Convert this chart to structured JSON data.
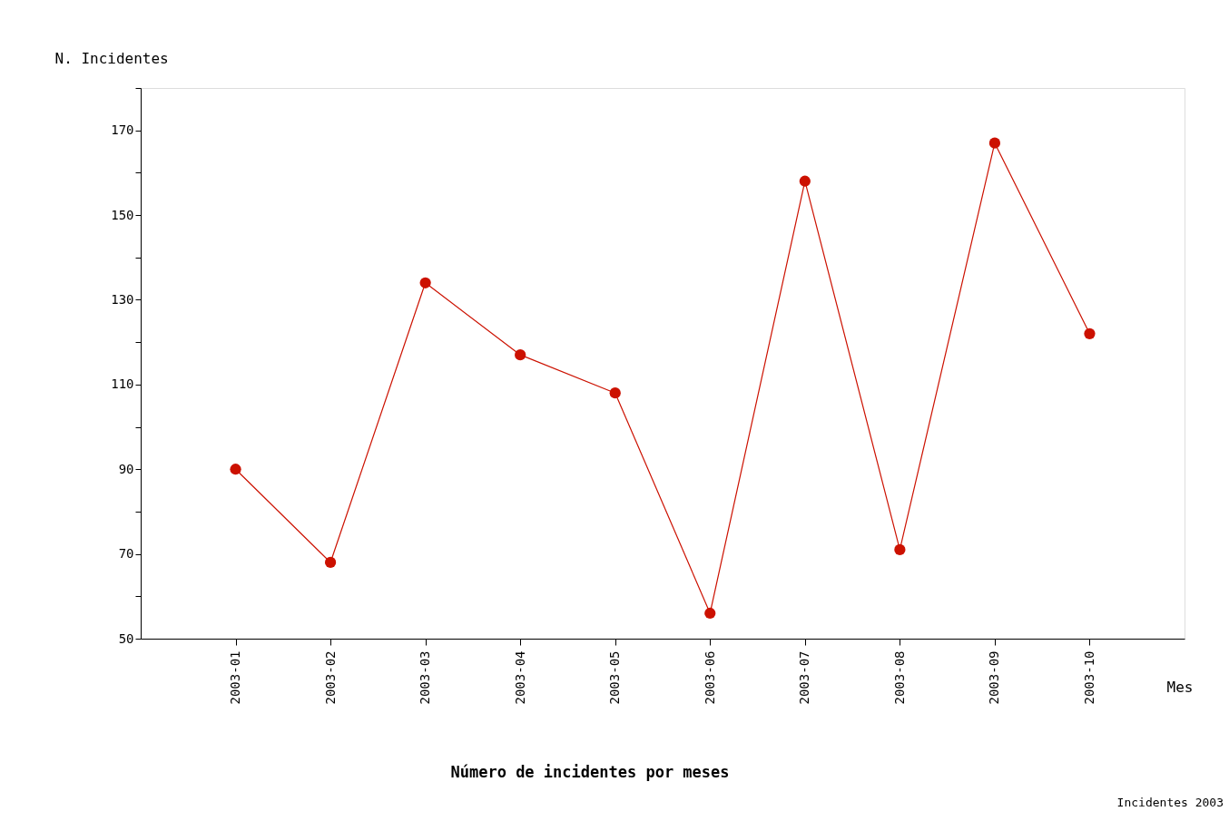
{
  "chart_data": {
    "type": "line",
    "title": "Número de incidentes por meses",
    "xlabel": "Mes",
    "ylabel": "N. Incidentes",
    "annotations": [
      "Incidentes 2003"
    ],
    "categories": [
      "2003-01",
      "2003-02",
      "2003-03",
      "2003-04",
      "2003-05",
      "2003-06",
      "2003-07",
      "2003-08",
      "2003-09",
      "2003-10"
    ],
    "series": [
      {
        "color": "#cc1100",
        "values": [
          90,
          68,
          134,
          117,
          108,
          56,
          158,
          71,
          167,
          122
        ]
      }
    ],
    "ylim": [
      50,
      180
    ],
    "yticks": [
      50,
      {
        "value": 60,
        "label": null
      },
      70,
      {
        "value": 80,
        "label": null
      },
      90,
      {
        "value": 100,
        "label": null
      },
      110,
      {
        "value": 120,
        "label": null
      },
      130,
      {
        "value": 140,
        "label": null
      },
      150,
      {
        "value": 160,
        "label": null
      },
      170,
      {
        "value": 180,
        "label": null
      }
    ],
    "grid": false,
    "marker": "circle",
    "line_style": "solid"
  }
}
